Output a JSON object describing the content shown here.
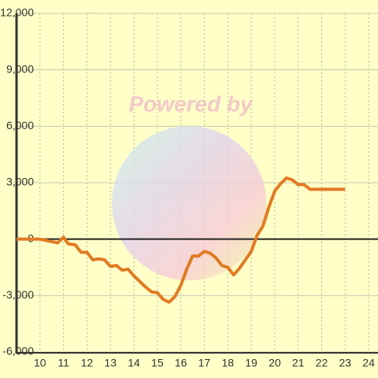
{
  "chart_data": {
    "type": "line",
    "watermark": "Powered by",
    "x": [
      9,
      10,
      10.5,
      10.75,
      11,
      11.2,
      11.5,
      11.75,
      12,
      12.25,
      12.5,
      12.75,
      13,
      13.25,
      13.5,
      13.75,
      14,
      14.25,
      14.5,
      14.75,
      15,
      15.25,
      15.5,
      15.75,
      16,
      16.25,
      16.5,
      16.75,
      17,
      17.25,
      17.5,
      17.75,
      18,
      18.25,
      18.5,
      18.75,
      19,
      19.25,
      19.5,
      19.75,
      20,
      20.25,
      20.5,
      20.75,
      21,
      21.25,
      21.5,
      23
    ],
    "series": [
      {
        "color": "#e07b22",
        "values": [
          0,
          0,
          -130,
          -200,
          100,
          -250,
          -300,
          -700,
          -700,
          -1100,
          -1050,
          -1100,
          -1450,
          -1400,
          -1650,
          -1600,
          -1950,
          -2250,
          -2550,
          -2800,
          -2850,
          -3200,
          -3350,
          -3050,
          -2450,
          -1600,
          -900,
          -900,
          -650,
          -750,
          -1000,
          -1400,
          -1500,
          -1900,
          -1550,
          -1100,
          -650,
          200,
          700,
          1700,
          2550,
          2950,
          3250,
          3150,
          2900,
          2900,
          2650,
          2650
        ]
      }
    ],
    "xlim": [
      9,
      24.4
    ],
    "xticks": [
      10,
      11,
      12,
      13,
      14,
      15,
      16,
      17,
      18,
      19,
      20,
      21,
      22,
      23,
      24
    ],
    "ylim": [
      -6000,
      12000
    ],
    "yticks": [
      {
        "value": -6000,
        "label": "-6,000"
      },
      {
        "value": -3000,
        "label": "-3,000"
      },
      0,
      {
        "value": 3000,
        "label": "3,000"
      },
      {
        "value": 6000,
        "label": "6,000"
      },
      {
        "value": 9000,
        "label": "9,000"
      },
      {
        "value": 12000,
        "label": "12,000"
      }
    ],
    "grid": true
  }
}
